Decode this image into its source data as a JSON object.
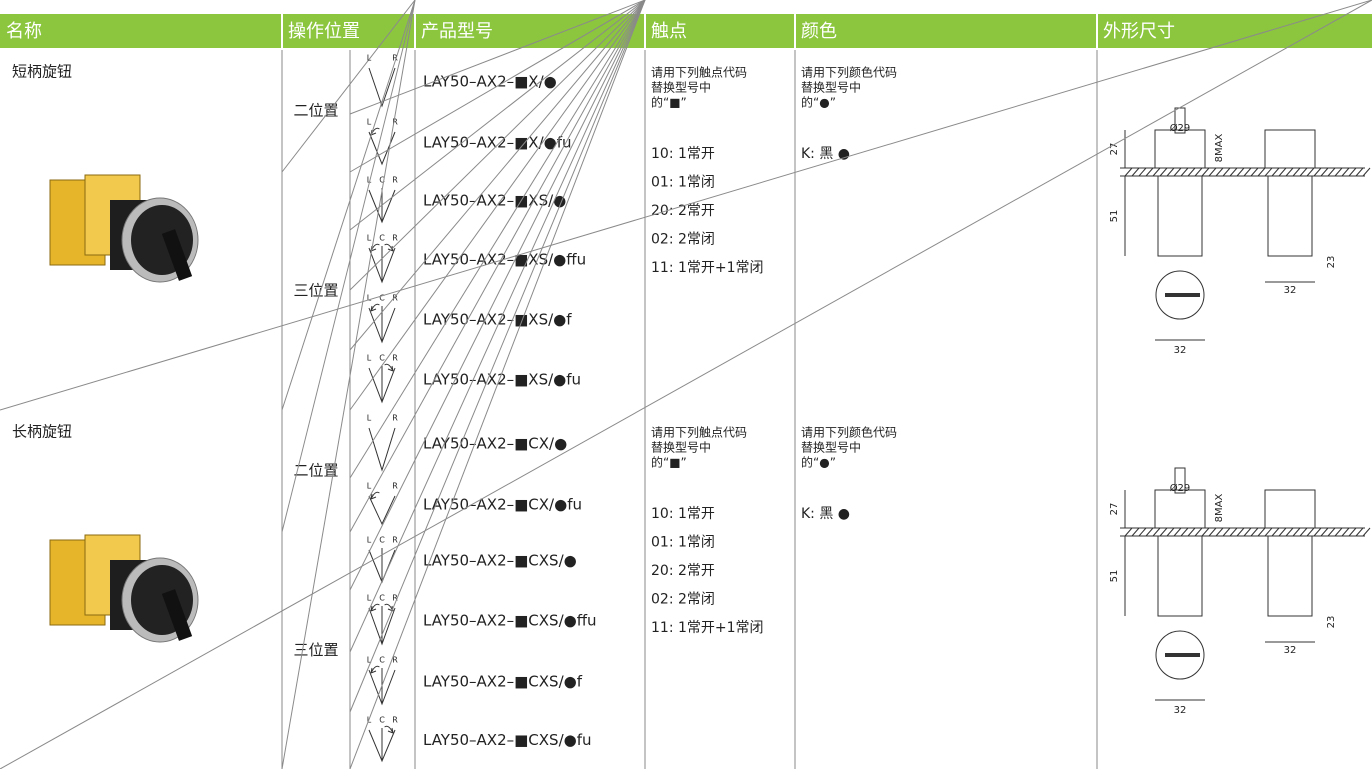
{
  "header": [
    "名称",
    "操作位置",
    "产品型号",
    "触点",
    "颜色",
    "外形尺寸"
  ],
  "sections": [
    {
      "name": "短柄旋钮",
      "groups": [
        {
          "label": "二位置",
          "rows": [
            {
              "switch": [
                "L",
                "R"
              ],
              "model": "LAY50–AX2–■X/●"
            },
            {
              "switch": [
                "L",
                "R"
              ],
              "model": "LAY50–AX2–■X/●fu"
            }
          ]
        },
        {
          "label": "三位置",
          "rows": [
            {
              "switch": [
                "L",
                "C",
                "R"
              ],
              "model": "LAY50–AX2–■XS/●"
            },
            {
              "switch": [
                "L",
                "C",
                "R"
              ],
              "model": "LAY50–AX2–■XS/●ffu"
            },
            {
              "switch": [
                "L",
                "C",
                "R"
              ],
              "model": "LAY50–AX2–■XS/●f"
            },
            {
              "switch": [
                "L",
                "C",
                "R"
              ],
              "model": "LAY50–AX2–■XS/●fu"
            }
          ]
        }
      ],
      "contacts": {
        "intro": [
          "请用下列触点代码",
          "替换型号中",
          "的“■”"
        ],
        "codes": [
          "10: 1常开",
          "01: 1常闭",
          "20: 2常开",
          "02: 2常闭",
          "11: 1常开+1常闭"
        ]
      },
      "colors": {
        "intro": [
          "请用下列颜色代码",
          "替换型号中",
          "的“●”"
        ],
        "codes": [
          "K: 黑  ●"
        ]
      },
      "dimensions": [
        "Ø29",
        "8MAX",
        "27",
        "51",
        "23",
        "32",
        "32"
      ]
    },
    {
      "name": "长柄旋钮",
      "groups": [
        {
          "label": "二位置",
          "rows": [
            {
              "switch": [
                "L",
                "R"
              ],
              "model": "LAY50–AX2–■CX/●"
            },
            {
              "switch": [
                "L",
                "R"
              ],
              "model": "LAY50–AX2–■CX/●fu"
            }
          ]
        },
        {
          "label": "三位置",
          "rows": [
            {
              "switch": [
                "L",
                "C",
                "R"
              ],
              "model": "LAY50–AX2–■CXS/●"
            },
            {
              "switch": [
                "L",
                "C",
                "R"
              ],
              "model": "LAY50–AX2–■CXS/●ffu"
            },
            {
              "switch": [
                "L",
                "C",
                "R"
              ],
              "model": "LAY50–AX2–■CXS/●f"
            },
            {
              "switch": [
                "L",
                "C",
                "R"
              ],
              "model": "LAY50–AX2–■CXS/●fu"
            }
          ]
        }
      ],
      "contacts": {
        "intro": [
          "请用下列触点代码",
          "替换型号中",
          "的“■”"
        ],
        "codes": [
          "10: 1常开",
          "01: 1常闭",
          "20: 2常开",
          "02: 2常闭",
          "11: 1常开+1常闭"
        ]
      },
      "colors": {
        "intro": [
          "请用下列颜色代码",
          "替换型号中",
          "的“●”"
        ],
        "codes": [
          "K: 黑  ●"
        ]
      },
      "dimensions": [
        "Ø29",
        "8MAX",
        "27",
        "51",
        "23",
        "32",
        "32"
      ]
    }
  ]
}
